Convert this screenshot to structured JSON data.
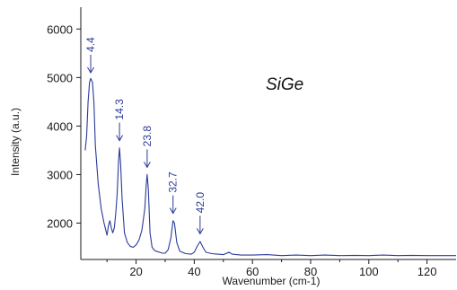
{
  "chart_data": {
    "type": "line",
    "title": "",
    "annotation_text": "SiGe",
    "xlabel": "Wavenumber (cm-1)",
    "ylabel": "Intensity (a.u.)",
    "xlim": [
      1,
      130
    ],
    "ylim": [
      1250,
      6450
    ],
    "xticks": [
      20,
      40,
      60,
      80,
      100,
      120
    ],
    "yticks": [
      2000,
      3000,
      4000,
      5000,
      6000
    ],
    "grid": false,
    "legend": "none",
    "series": [
      {
        "x": [
          2.5,
          3,
          3.5,
          4,
          4.4,
          5,
          5.5,
          6,
          7,
          8,
          9,
          10,
          10.5,
          11,
          11.5,
          12,
          12.5,
          13,
          13.5,
          14,
          14.3,
          14.7,
          15.2,
          16,
          17,
          18,
          19,
          20,
          21,
          22,
          23,
          23.5,
          23.8,
          24.2,
          24.8,
          25.5,
          26.5,
          28,
          29,
          30,
          31,
          32,
          32.7,
          33.2,
          34,
          35,
          37,
          39,
          40,
          41,
          42,
          43,
          44,
          46,
          48,
          50,
          52,
          53,
          56,
          60,
          65,
          70,
          75,
          80,
          85,
          90,
          95,
          100,
          105,
          110,
          115,
          120,
          125,
          130
        ],
        "y": [
          3500,
          3800,
          4500,
          4900,
          4980,
          4900,
          4500,
          3600,
          2800,
          2300,
          2000,
          1750,
          1950,
          2050,
          1900,
          1800,
          1900,
          2200,
          2600,
          3300,
          3550,
          3200,
          2500,
          1800,
          1600,
          1520,
          1500,
          1550,
          1650,
          1850,
          2300,
          2800,
          3000,
          2700,
          1800,
          1500,
          1430,
          1400,
          1380,
          1380,
          1450,
          1700,
          2050,
          2000,
          1600,
          1420,
          1370,
          1360,
          1400,
          1520,
          1620,
          1500,
          1400,
          1370,
          1360,
          1350,
          1400,
          1360,
          1340,
          1340,
          1350,
          1330,
          1340,
          1330,
          1340,
          1330,
          1335,
          1330,
          1340,
          1330,
          1335,
          1330,
          1330,
          1330
        ]
      }
    ],
    "peak_annotations": [
      {
        "label": "4.4",
        "x": 4.4,
        "y": 5100
      },
      {
        "label": "14.3",
        "x": 14.3,
        "y": 3700
      },
      {
        "label": "23.8",
        "x": 23.8,
        "y": 3150
      },
      {
        "label": "32.7",
        "x": 32.7,
        "y": 2200
      },
      {
        "label": "42.0",
        "x": 42.0,
        "y": 1780
      }
    ],
    "colors": {
      "line": "#2b3a9a",
      "annotation": "#2b3a9a",
      "axis": "#1a1a1a"
    }
  }
}
